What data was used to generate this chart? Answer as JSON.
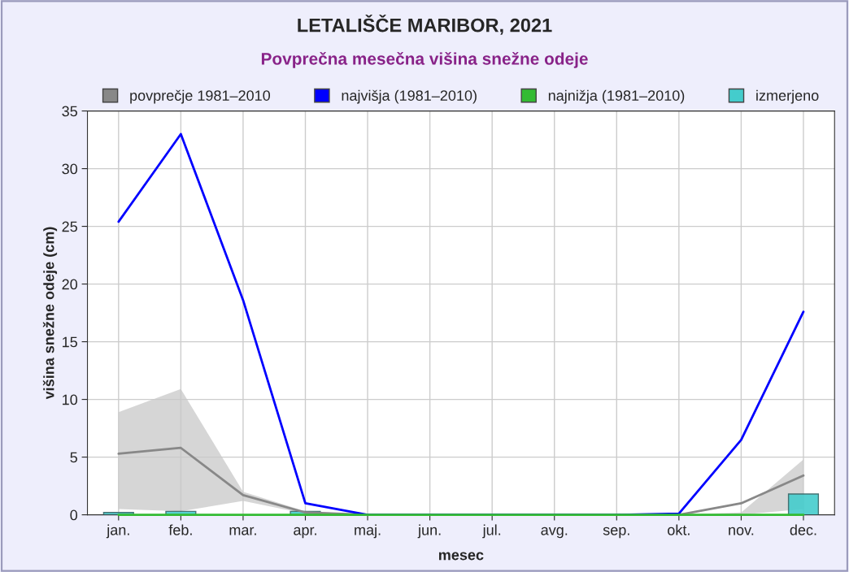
{
  "chart_data": {
    "type": "line",
    "title": "LETALIŠČE MARIBOR, 2021",
    "subtitle": "Povprečna mesečna višina snežne odeje",
    "xlabel": "mesec",
    "ylabel": "višina snežne odeje (cm)",
    "categories": [
      "jan.",
      "feb.",
      "mar.",
      "apr.",
      "maj.",
      "jun.",
      "jul.",
      "avg.",
      "sep.",
      "okt.",
      "nov.",
      "dec."
    ],
    "series": [
      {
        "name": "povprečje 1981–2010",
        "color": "#888888",
        "values": [
          5.3,
          5.8,
          1.7,
          0.2,
          0,
          0,
          0,
          0,
          0,
          0,
          1.0,
          3.4
        ],
        "lower": [
          0.5,
          0.3,
          1.2,
          0.1,
          0,
          0,
          0,
          0,
          0,
          0,
          0,
          0.5
        ],
        "upper": [
          8.9,
          10.9,
          2.0,
          0.3,
          0,
          0,
          0,
          0,
          0,
          0,
          0.2,
          4.8
        ]
      },
      {
        "name": "najvišja (1981–2010)",
        "color": "#0000ff",
        "values": [
          25.4,
          33.0,
          18.6,
          1.0,
          0,
          0,
          0,
          0,
          0,
          0.1,
          6.5,
          17.6
        ]
      },
      {
        "name": "najnižja (1981–2010)",
        "color": "#33bb33",
        "values": [
          0,
          0,
          0,
          0,
          0,
          0,
          0,
          0,
          0,
          0,
          0,
          0
        ]
      },
      {
        "name": "izmerjeno",
        "color": "#44cccc",
        "type": "bar",
        "values": [
          0.2,
          0.3,
          null,
          0.3,
          null,
          null,
          null,
          null,
          null,
          null,
          null,
          1.8
        ]
      }
    ],
    "ylim": [
      0,
      35
    ],
    "yticks": [
      0,
      5,
      10,
      15,
      20,
      25,
      30,
      35
    ],
    "grid": true,
    "legend": "top"
  }
}
